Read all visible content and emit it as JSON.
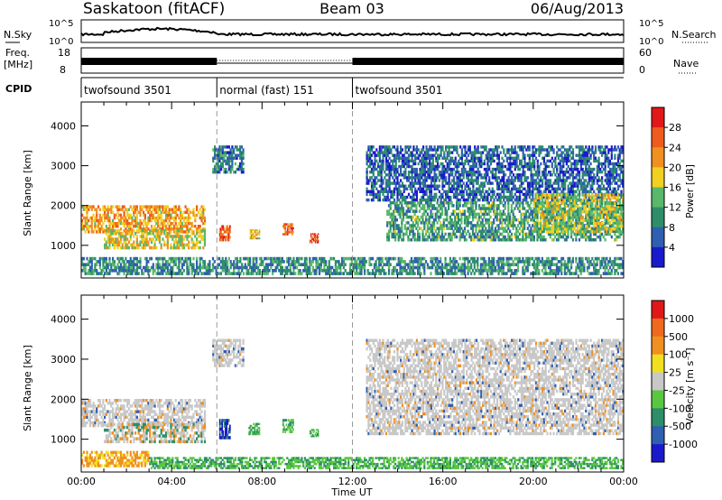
{
  "header": {
    "station": "Saskatoon (fitACF)",
    "beam": "Beam 03",
    "date": "06/Aug/2013"
  },
  "top_strip": {
    "left_label": "N.Sky",
    "left_ticks": [
      "10^5",
      "10^0"
    ],
    "right_label": "N.Search",
    "right_ticks": [
      "10^5",
      "10^0"
    ]
  },
  "freq_strip": {
    "left_label_line1": "Freq.",
    "left_label_line2": "[MHz]",
    "left_ticks": [
      "18",
      "8"
    ],
    "right_label": "Nave",
    "right_ticks": [
      "60",
      "0"
    ]
  },
  "cpid": {
    "label": "CPID",
    "segments": [
      {
        "text": "twofsound 3501",
        "start_hour": 0,
        "end_hour": 6
      },
      {
        "text": "normal (fast) 151",
        "start_hour": 6,
        "end_hour": 12
      },
      {
        "text": "twofsound 3501",
        "start_hour": 12,
        "end_hour": 24
      }
    ]
  },
  "colors": {
    "power_scale": [
      "#1a1acc",
      "#2f5fb0",
      "#2e8e6a",
      "#59b86a",
      "#f0d020",
      "#f09020",
      "#ef5a1e",
      "#e01818"
    ],
    "velocity_scale": [
      "#1a1acc",
      "#2f5fb0",
      "#2e8e6a",
      "#59c840",
      "#c8c8c8",
      "#f0e020",
      "#f09020",
      "#ef6a1e",
      "#e01818"
    ],
    "gray_band": "#c8c8c8",
    "ground_scatter_green": "#59c840"
  },
  "chart_data": [
    {
      "type": "heatmap",
      "name": "power",
      "ylabel": "Slant Range [km]",
      "xlabel": "Time UT",
      "x_ticks": [
        "00:00",
        "04:00",
        "08:00",
        "12:00",
        "16:00",
        "20:00",
        "00:00"
      ],
      "xlim_hours": [
        0,
        24
      ],
      "y_ticks": [
        1000,
        2000,
        3000,
        4000
      ],
      "ylim_km": [
        180,
        4600
      ],
      "colorbar_label": "Power [dB]",
      "colorbar_ticks": [
        "28",
        "24",
        "20",
        "16",
        "12",
        "8",
        "4"
      ],
      "mode_change_hours": [
        6,
        12
      ],
      "regions": [
        {
          "t": [
            0,
            5.5
          ],
          "r": [
            1300,
            2000
          ],
          "level": 0.65
        },
        {
          "t": [
            1.0,
            5.5
          ],
          "r": [
            900,
            1400
          ],
          "level": 0.55
        },
        {
          "t": [
            5.8,
            7.2
          ],
          "r": [
            2800,
            3500
          ],
          "level": 0.25
        },
        {
          "t": [
            6.1,
            6.6
          ],
          "r": [
            1100,
            1500
          ],
          "level": 0.8
        },
        {
          "t": [
            7.4,
            7.9
          ],
          "r": [
            1150,
            1400
          ],
          "level": 0.6
        },
        {
          "t": [
            8.9,
            9.4
          ],
          "r": [
            1250,
            1550
          ],
          "level": 0.8
        },
        {
          "t": [
            10.1,
            10.5
          ],
          "r": [
            1050,
            1300
          ],
          "level": 0.85
        },
        {
          "t": [
            12.6,
            24
          ],
          "r": [
            2100,
            3500
          ],
          "level": 0.2
        },
        {
          "t": [
            13.5,
            24
          ],
          "r": [
            1100,
            2100
          ],
          "level": 0.35
        },
        {
          "t": [
            20.0,
            24
          ],
          "r": [
            1300,
            2300
          ],
          "level": 0.5
        },
        {
          "t": [
            0,
            24
          ],
          "r": [
            250,
            700
          ],
          "level": 0.3
        }
      ]
    },
    {
      "type": "heatmap",
      "name": "velocity",
      "ylabel": "Slant Range [km]",
      "xlabel": "Time UT",
      "x_ticks": [
        "00:00",
        "04:00",
        "08:00",
        "12:00",
        "16:00",
        "20:00",
        "00:00"
      ],
      "xlim_hours": [
        0,
        24
      ],
      "y_ticks": [
        1000,
        2000,
        3000,
        4000
      ],
      "ylim_km": [
        180,
        4600
      ],
      "colorbar_label": "Velocity [m s⁻¹]",
      "colorbar_ticks": [
        "1000",
        "500",
        "100",
        "25",
        "-25",
        "-100",
        "-500",
        "-1000"
      ],
      "mode_change_hours": [
        6,
        12
      ],
      "regions": [
        {
          "t": [
            0,
            5.5
          ],
          "r": [
            1300,
            2000
          ],
          "kind": "gray"
        },
        {
          "t": [
            1.0,
            5.5
          ],
          "r": [
            900,
            1400
          ],
          "kind": "mixed"
        },
        {
          "t": [
            5.8,
            7.2
          ],
          "r": [
            2800,
            3500
          ],
          "kind": "gray"
        },
        {
          "t": [
            6.1,
            6.6
          ],
          "r": [
            1000,
            1500
          ],
          "kind": "blue"
        },
        {
          "t": [
            7.4,
            7.9
          ],
          "r": [
            1100,
            1400
          ],
          "kind": "green"
        },
        {
          "t": [
            8.9,
            9.4
          ],
          "r": [
            1150,
            1500
          ],
          "kind": "green"
        },
        {
          "t": [
            10.1,
            10.5
          ],
          "r": [
            1050,
            1250
          ],
          "kind": "green"
        },
        {
          "t": [
            12.6,
            24
          ],
          "r": [
            1100,
            3500
          ],
          "kind": "gray"
        },
        {
          "t": [
            0,
            3.0
          ],
          "r": [
            300,
            700
          ],
          "kind": "orange"
        },
        {
          "t": [
            3.0,
            24
          ],
          "r": [
            250,
            550
          ],
          "kind": "green"
        }
      ]
    }
  ]
}
